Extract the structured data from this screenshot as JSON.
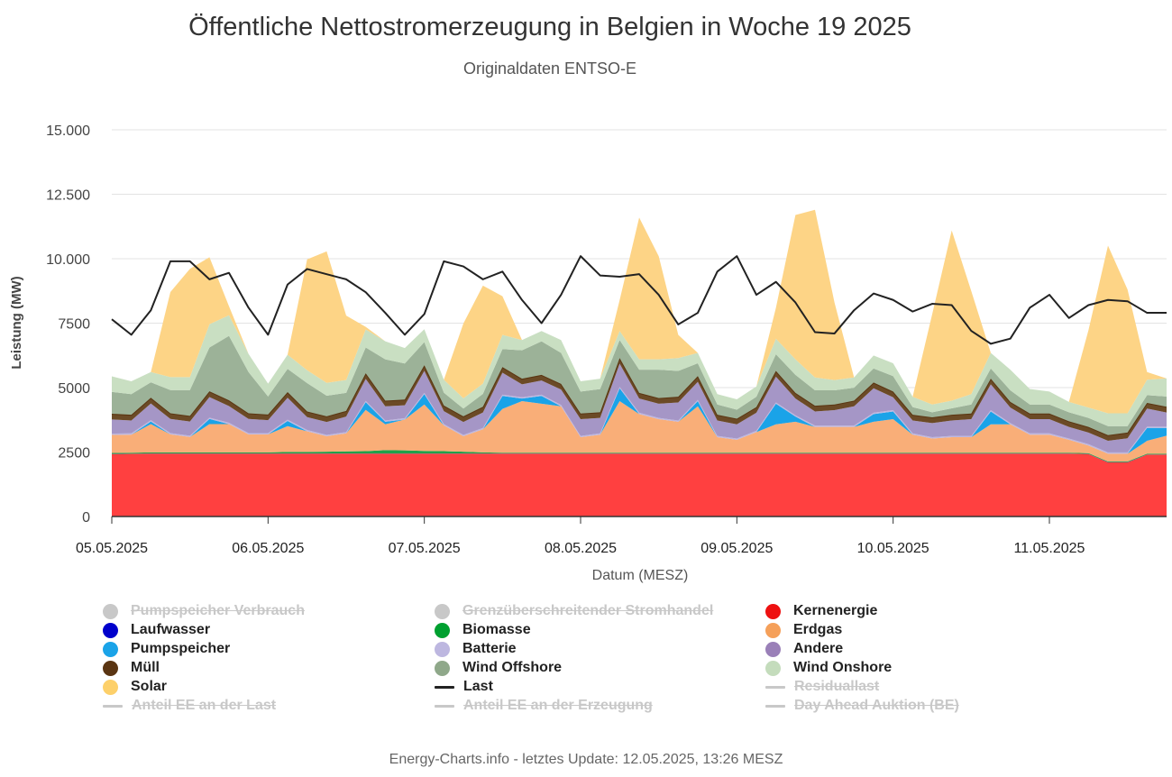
{
  "title": "Öffentliche Nettostromerzeugung in Belgien in Woche 19 2025",
  "subtitle": "Originaldaten ENTSO-E",
  "footer": "Energy-Charts.info - letztes Update: 12.05.2025, 13:26 MESZ",
  "legend": [
    {
      "label": "Pumpspeicher Verbrauch",
      "color": "#c8c8c8",
      "symbol": "circle",
      "enabled": false
    },
    {
      "label": "Grenzüberschreitender Stromhandel",
      "color": "#c8c8c8",
      "symbol": "circle",
      "enabled": false
    },
    {
      "label": "Kernenergie",
      "color": "#ee1111",
      "symbol": "circle",
      "enabled": true
    },
    {
      "label": "Laufwasser",
      "color": "#0000cc",
      "symbol": "circle",
      "enabled": true
    },
    {
      "label": "Biomasse",
      "color": "#00a030",
      "symbol": "circle",
      "enabled": true
    },
    {
      "label": "Erdgas",
      "color": "#f5a05a",
      "symbol": "circle",
      "enabled": true
    },
    {
      "label": "Pumpspeicher",
      "color": "#1aa3e8",
      "symbol": "circle",
      "enabled": true
    },
    {
      "label": "Batterie",
      "color": "#bdb7e0",
      "symbol": "circle",
      "enabled": true
    },
    {
      "label": "Andere",
      "color": "#9a80b8",
      "symbol": "circle",
      "enabled": true
    },
    {
      "label": "Müll",
      "color": "#5a3512",
      "symbol": "circle",
      "enabled": true
    },
    {
      "label": "Wind Offshore",
      "color": "#8fa88a",
      "symbol": "circle",
      "enabled": true
    },
    {
      "label": "Wind Onshore",
      "color": "#c4dcbc",
      "symbol": "circle",
      "enabled": true
    },
    {
      "label": "Solar",
      "color": "#fdd06a",
      "symbol": "circle",
      "enabled": true
    },
    {
      "label": "Last",
      "color": "#222222",
      "symbol": "line",
      "enabled": true
    },
    {
      "label": "Residuallast",
      "color": "#c8c8c8",
      "symbol": "line",
      "enabled": false
    },
    {
      "label": "Anteil EE an der Last",
      "color": "#c8c8c8",
      "symbol": "line",
      "enabled": false
    },
    {
      "label": "Anteil EE an der Erzeugung",
      "color": "#c8c8c8",
      "symbol": "line",
      "enabled": false
    },
    {
      "label": "Day Ahead Auktion (BE)",
      "color": "#c8c8c8",
      "symbol": "line",
      "enabled": false
    }
  ],
  "chart_data": {
    "type": "area",
    "stacked": true,
    "title": "Öffentliche Nettostromerzeugung in Belgien in Woche 19 2025",
    "subtitle": "Originaldaten ENTSO-E",
    "xlabel": "Datum (MESZ)",
    "ylabel": "Leistung (MW)",
    "ylim": [
      0,
      15000
    ],
    "yticks": [
      0,
      2500,
      5000,
      7500,
      10000,
      12500,
      15000
    ],
    "ytick_labels": [
      "0",
      "2500",
      "5000",
      "7500",
      "10.000",
      "12.500",
      "15.000"
    ],
    "x_unit": "hours since 05.05.2025 00:00",
    "xlim": [
      0,
      162
    ],
    "xticks": [
      0,
      24,
      48,
      72,
      96,
      120,
      144
    ],
    "xtick_labels": [
      "05.05.2025",
      "06.05.2025",
      "07.05.2025",
      "08.05.2025",
      "09.05.2025",
      "10.05.2025",
      "11.05.2025"
    ],
    "grid": "horizontal",
    "x": [
      0,
      3,
      6,
      9,
      12,
      15,
      18,
      21,
      24,
      27,
      30,
      33,
      36,
      39,
      42,
      45,
      48,
      51,
      54,
      57,
      60,
      63,
      66,
      69,
      72,
      75,
      78,
      81,
      84,
      87,
      90,
      93,
      96,
      99,
      102,
      105,
      108,
      111,
      114,
      117,
      120,
      123,
      126,
      129,
      132,
      135,
      138,
      141,
      144,
      147,
      150,
      153,
      156,
      159,
      162
    ],
    "series": [
      {
        "name": "Kernenergie",
        "color": "#ff4040",
        "values": [
          2420,
          2430,
          2440,
          2440,
          2440,
          2440,
          2440,
          2440,
          2440,
          2440,
          2440,
          2440,
          2440,
          2440,
          2440,
          2440,
          2440,
          2440,
          2440,
          2440,
          2440,
          2440,
          2440,
          2440,
          2440,
          2440,
          2440,
          2440,
          2440,
          2440,
          2440,
          2440,
          2440,
          2440,
          2440,
          2440,
          2440,
          2440,
          2440,
          2440,
          2440,
          2440,
          2440,
          2440,
          2440,
          2440,
          2440,
          2440,
          2440,
          2440,
          2420,
          2100,
          2100,
          2400,
          2400
        ]
      },
      {
        "name": "Laufwasser",
        "color": "#0000cc",
        "values": [
          5,
          5,
          5,
          5,
          5,
          5,
          5,
          5,
          5,
          5,
          5,
          5,
          5,
          5,
          5,
          5,
          5,
          5,
          5,
          5,
          5,
          5,
          5,
          5,
          5,
          5,
          5,
          5,
          5,
          5,
          5,
          5,
          5,
          5,
          5,
          5,
          5,
          5,
          5,
          5,
          5,
          5,
          5,
          5,
          5,
          5,
          5,
          5,
          5,
          5,
          5,
          5,
          5,
          5,
          5
        ]
      },
      {
        "name": "Biomasse",
        "color": "#22a04a",
        "values": [
          40,
          40,
          40,
          40,
          40,
          40,
          40,
          40,
          40,
          60,
          60,
          70,
          80,
          90,
          130,
          120,
          100,
          90,
          70,
          40,
          30,
          30,
          30,
          30,
          30,
          30,
          30,
          30,
          30,
          30,
          30,
          30,
          30,
          30,
          30,
          30,
          30,
          30,
          30,
          30,
          30,
          30,
          30,
          30,
          30,
          30,
          30,
          30,
          30,
          30,
          30,
          30,
          30,
          30,
          30
        ]
      },
      {
        "name": "Erdgas",
        "color": "#f9ae78",
        "values": [
          700,
          700,
          1100,
          700,
          600,
          1100,
          1100,
          700,
          700,
          1000,
          800,
          600,
          700,
          1600,
          1000,
          1200,
          1800,
          1000,
          600,
          900,
          1700,
          2000,
          1900,
          1800,
          600,
          700,
          2000,
          1500,
          1300,
          1200,
          1800,
          600,
          500,
          800,
          1100,
          1200,
          1000,
          1000,
          1000,
          1200,
          1300,
          700,
          550,
          600,
          600,
          1100,
          1100,
          700,
          700,
          500,
          300,
          300,
          300,
          500,
          700
        ]
      },
      {
        "name": "Pumpspeicher",
        "color": "#1aa3e8",
        "values": [
          0,
          0,
          100,
          0,
          0,
          200,
          0,
          0,
          0,
          200,
          0,
          0,
          0,
          300,
          100,
          0,
          400,
          0,
          0,
          0,
          500,
          100,
          300,
          0,
          0,
          0,
          500,
          0,
          0,
          0,
          200,
          0,
          0,
          0,
          800,
          200,
          0,
          0,
          0,
          300,
          300,
          0,
          0,
          0,
          0,
          500,
          0,
          0,
          0,
          0,
          0,
          0,
          0,
          500,
          300
        ]
      },
      {
        "name": "Batterie",
        "color": "#bdb7e0",
        "values": [
          50,
          50,
          50,
          50,
          50,
          50,
          50,
          50,
          50,
          50,
          50,
          50,
          50,
          50,
          50,
          50,
          50,
          50,
          50,
          50,
          50,
          50,
          50,
          50,
          50,
          50,
          50,
          50,
          50,
          50,
          50,
          50,
          50,
          50,
          50,
          50,
          50,
          50,
          50,
          50,
          50,
          50,
          50,
          50,
          50,
          50,
          50,
          50,
          50,
          50,
          50,
          50,
          50,
          50,
          50
        ]
      },
      {
        "name": "Andere",
        "color": "#a596c6",
        "values": [
          550,
          500,
          650,
          550,
          550,
          800,
          650,
          550,
          500,
          850,
          500,
          500,
          600,
          850,
          550,
          500,
          850,
          500,
          500,
          600,
          850,
          500,
          550,
          600,
          650,
          600,
          900,
          550,
          550,
          700,
          700,
          600,
          550,
          700,
          1000,
          650,
          550,
          600,
          750,
          950,
          500,
          500,
          550,
          600,
          650,
          1000,
          600,
          550,
          550,
          450,
          450,
          450,
          550,
          700,
          550
        ]
      },
      {
        "name": "Müll",
        "color": "#6b4a26",
        "values": [
          220,
          220,
          220,
          220,
          220,
          220,
          220,
          220,
          220,
          220,
          220,
          220,
          220,
          220,
          220,
          220,
          220,
          220,
          220,
          220,
          220,
          220,
          220,
          220,
          220,
          220,
          220,
          220,
          220,
          220,
          220,
          220,
          220,
          220,
          220,
          220,
          220,
          220,
          220,
          220,
          220,
          220,
          220,
          220,
          220,
          220,
          220,
          220,
          220,
          220,
          220,
          220,
          220,
          220,
          220
        ]
      },
      {
        "name": "Wind Offshore",
        "color": "#9cb298",
        "values": [
          850,
          800,
          600,
          900,
          1000,
          1700,
          2500,
          1600,
          700,
          900,
          1100,
          800,
          700,
          1000,
          1600,
          1400,
          900,
          500,
          300,
          500,
          700,
          1100,
          1300,
          1200,
          850,
          900,
          700,
          900,
          1100,
          1000,
          500,
          400,
          350,
          400,
          650,
          700,
          600,
          550,
          500,
          550,
          600,
          300,
          200,
          250,
          350,
          400,
          450,
          350,
          350,
          350,
          350,
          350,
          250,
          300,
          400
        ]
      },
      {
        "name": "Wind Onshore",
        "color": "#c9dfc2",
        "values": [
          600,
          500,
          400,
          500,
          500,
          900,
          800,
          700,
          500,
          550,
          500,
          500,
          500,
          700,
          700,
          600,
          500,
          500,
          400,
          400,
          550,
          400,
          400,
          500,
          400,
          400,
          350,
          400,
          400,
          500,
          400,
          400,
          400,
          400,
          600,
          600,
          500,
          400,
          400,
          500,
          500,
          400,
          300,
          300,
          400,
          600,
          800,
          600,
          500,
          400,
          400,
          500,
          500,
          600,
          700
        ]
      },
      {
        "name": "Solar",
        "color": "#fdd486",
        "values": [
          0,
          0,
          0,
          3300,
          4200,
          2600,
          350,
          0,
          0,
          0,
          4300,
          5100,
          2500,
          100,
          0,
          0,
          0,
          0,
          2900,
          3800,
          1500,
          0,
          0,
          0,
          0,
          0,
          1200,
          5500,
          4000,
          900,
          0,
          0,
          0,
          0,
          1200,
          5600,
          6500,
          3000,
          0,
          0,
          0,
          0,
          3500,
          6600,
          4000,
          0,
          0,
          0,
          0,
          0,
          3000,
          6500,
          4800,
          300,
          0
        ]
      },
      {
        "name": "Last",
        "color": "#222222",
        "chart_type": "line",
        "values": [
          7650,
          7050,
          8000,
          9900,
          9900,
          9200,
          9450,
          8100,
          7050,
          9000,
          9600,
          9400,
          9200,
          8700,
          7900,
          7050,
          7850,
          9900,
          9700,
          9200,
          9500,
          8400,
          7500,
          8600,
          10100,
          9350,
          9300,
          9400,
          8600,
          7450,
          7900,
          9500,
          10100,
          8600,
          9100,
          8300,
          7150,
          7100,
          8000,
          8650,
          8400,
          7950,
          8250,
          8200,
          7200,
          6700,
          6900,
          8100,
          8600,
          7700,
          8200,
          8400,
          8350,
          7900,
          7900
        ]
      }
    ]
  }
}
